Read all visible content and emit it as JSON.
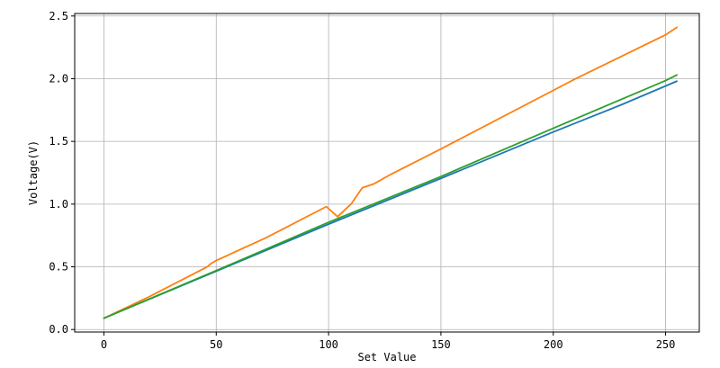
{
  "chart_data": {
    "type": "line",
    "title": "",
    "xlabel": "Set Value",
    "ylabel": "Voltage(V)",
    "xlim": [
      -13,
      265
    ],
    "ylim": [
      -0.02,
      2.52
    ],
    "xticks": [
      0,
      50,
      100,
      150,
      200,
      250
    ],
    "yticks": [
      0.0,
      0.5,
      1.0,
      1.5,
      2.0,
      2.5
    ],
    "xtick_labels": [
      "0",
      "50",
      "100",
      "150",
      "200",
      "250"
    ],
    "ytick_labels": [
      "0.0",
      "0.5",
      "1.0",
      "1.5",
      "2.0",
      "2.5"
    ],
    "grid": true,
    "legend": false,
    "series": [
      {
        "color": "#1f77b4",
        "x": [
          0,
          50,
          100,
          150,
          200,
          230,
          255
        ],
        "y": [
          0.09,
          0.465,
          0.84,
          1.205,
          1.575,
          1.79,
          1.98
        ]
      },
      {
        "color": "#ff7f0e",
        "x": [
          0,
          20,
          46,
          48,
          50,
          72,
          99,
          104,
          110,
          115,
          120,
          128,
          150,
          180,
          210,
          250,
          255
        ],
        "y": [
          0.09,
          0.26,
          0.5,
          0.53,
          0.55,
          0.73,
          0.98,
          0.9,
          1.0,
          1.13,
          1.16,
          1.24,
          1.44,
          1.72,
          2.0,
          2.35,
          2.41
        ]
      },
      {
        "color": "#2ca02c",
        "x": [
          0,
          50,
          100,
          150,
          200,
          250,
          255
        ],
        "y": [
          0.09,
          0.47,
          0.855,
          1.22,
          1.605,
          1.985,
          2.03
        ]
      }
    ]
  }
}
